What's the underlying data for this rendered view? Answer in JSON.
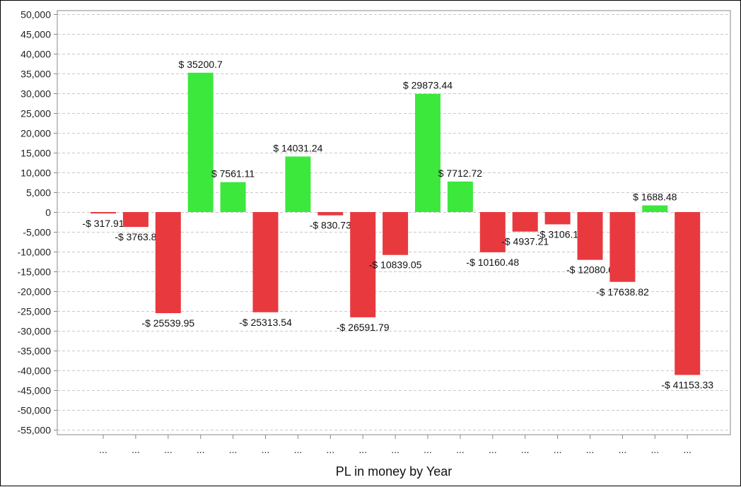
{
  "chart_data": {
    "type": "bar",
    "title": "",
    "xlabel": "PL in money by Year",
    "ylabel": "",
    "ylim": [
      -55000,
      50000
    ],
    "y_ticks": [
      50000,
      45000,
      40000,
      35000,
      30000,
      25000,
      20000,
      15000,
      10000,
      5000,
      0,
      -5000,
      -10000,
      -15000,
      -20000,
      -25000,
      -30000,
      -35000,
      -40000,
      -45000,
      -50000,
      -55000
    ],
    "y_tick_labels": [
      "50,000",
      "45,000",
      "40,000",
      "35,000",
      "30,000",
      "25,000",
      "20,000",
      "15,000",
      "10,000",
      "5,000",
      "0",
      "-5,000",
      "-10,000",
      "-15,000",
      "-20,000",
      "-25,000",
      "-30,000",
      "-35,000",
      "-40,000",
      "-45,000",
      "-50,000",
      "-55,000"
    ],
    "grid": true,
    "categories": [
      "...",
      "...",
      "...",
      "...",
      "...",
      "...",
      "...",
      "...",
      "...",
      "...",
      "...",
      "...",
      "...",
      "...",
      "...",
      "...",
      "...",
      "...",
      "..."
    ],
    "values": [
      -317.91,
      -3763.8,
      -25539.95,
      35200.7,
      7561.11,
      -25313.54,
      14031.24,
      -830.73,
      -26591.79,
      -10839.05,
      29873.44,
      7712.72,
      -10160.48,
      -4937.21,
      -3106.1,
      -12080.6,
      -17638.82,
      1688.48,
      -41153.33
    ],
    "data_labels": [
      "-$ 317.91",
      "-$ 3763.8",
      "-$ 25539.95",
      "$ 35200.7",
      "$ 7561.11",
      "-$ 25313.54",
      "$ 14031.24",
      "-$ 830.73",
      "-$ 26591.79",
      "-$ 10839.05",
      "$ 29873.44",
      "$ 7712.72",
      "-$ 10160.48",
      "-$ 4937.21",
      "-$ 3106.1",
      "-$ 12080.6",
      "-$ 17638.82",
      "$ 1688.48",
      "-$ 41153.33"
    ],
    "colors": {
      "positive": "#3de83d",
      "negative": "#e8393f",
      "grid": "#c8c8c8",
      "axis": "#888888"
    }
  }
}
